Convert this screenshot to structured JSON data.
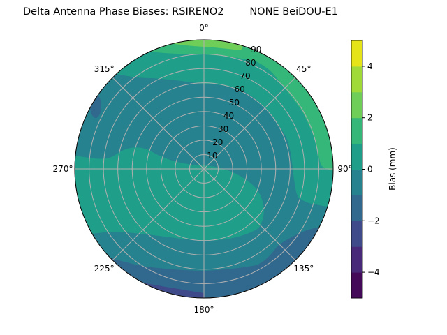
{
  "chart_data": {
    "type": "polar-contour",
    "title": "Delta Antenna Phase Biases: RSIRENO2        NONE BeiDOU-E1",
    "angle_ticks": [
      "0°",
      "45°",
      "90°",
      "135°",
      "180°",
      "225°",
      "270°",
      "315°"
    ],
    "radial_ticks": [
      "10",
      "20",
      "30",
      "40",
      "50",
      "60",
      "70",
      "80",
      "90"
    ],
    "radial_range": [
      0,
      90
    ],
    "angle_direction": "clockwise, 0° at top",
    "grid": true,
    "colorbar": {
      "label": "Bias (mm)",
      "range": [
        -5,
        5
      ],
      "levels": [
        -5,
        -4,
        -3,
        -2,
        -1,
        0,
        1,
        2,
        3,
        4,
        5
      ],
      "ticks": [
        "−4",
        "−2",
        "0",
        "2",
        "4"
      ],
      "colormap": "viridis",
      "colors": [
        "#440154",
        "#472d7b",
        "#3b528b",
        "#2c728e",
        "#21918c",
        "#28ae80",
        "#5ec962",
        "#addc30",
        "#fde725",
        "#e5e419"
      ],
      "band_colors": [
        "#45095a",
        "#482878",
        "#3e4a89",
        "#31688e",
        "#26828e",
        "#1f9e89",
        "#35b779",
        "#6ece58",
        "#a0da39",
        "#e5e419"
      ]
    },
    "regions": [
      {
        "range": "-1..0",
        "location": "central band and most of the disc"
      },
      {
        "range": "0..1",
        "location": "west-south sector and outer north-east ring"
      },
      {
        "range": "1..2",
        "location": "outer north to east rim"
      },
      {
        "range": "2..3",
        "location": "small patch at the north rim"
      },
      {
        "range": "-2..-1",
        "location": "southern rim and small west-north-west spot"
      },
      {
        "range": "-3..-2",
        "location": "south-south-west rim"
      }
    ]
  }
}
